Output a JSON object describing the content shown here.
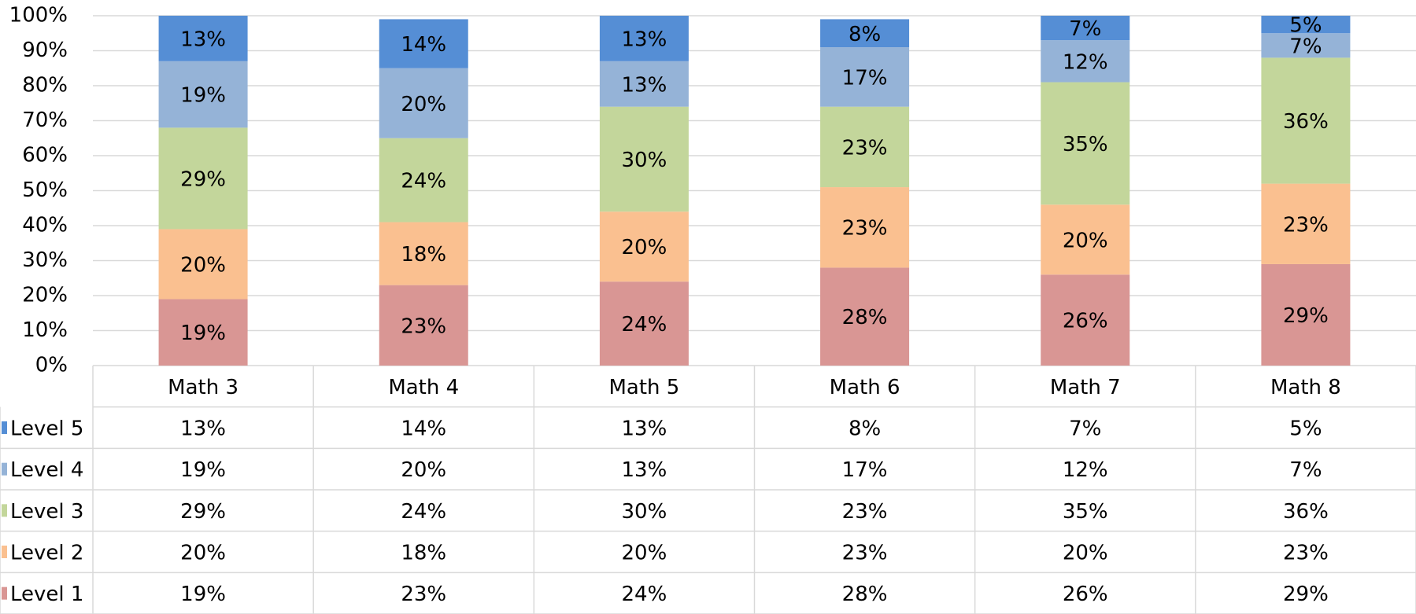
{
  "chart_data": {
    "type": "stacked_bar",
    "categories": [
      "Math 3",
      "Math 4",
      "Math 5",
      "Math 6",
      "Math 7",
      "Math 8"
    ],
    "series": [
      {
        "name": "Level 1",
        "color": "#d99694",
        "values": [
          19,
          23,
          24,
          28,
          26,
          29
        ],
        "value_labels": [
          "19%",
          "23%",
          "24%",
          "28%",
          "26%",
          "29%"
        ]
      },
      {
        "name": "Level 2",
        "color": "#fac090",
        "values": [
          20,
          18,
          20,
          23,
          20,
          23
        ],
        "value_labels": [
          "20%",
          "18%",
          "20%",
          "23%",
          "20%",
          "23%"
        ]
      },
      {
        "name": "Level 3",
        "color": "#c3d69b",
        "values": [
          29,
          24,
          30,
          23,
          35,
          36
        ],
        "value_labels": [
          "29%",
          "24%",
          "30%",
          "23%",
          "35%",
          "36%"
        ]
      },
      {
        "name": "Level 4",
        "color": "#95b3d7",
        "values": [
          19,
          20,
          13,
          17,
          12,
          7
        ],
        "value_labels": [
          "19%",
          "20%",
          "13%",
          "17%",
          "12%",
          "7%"
        ]
      },
      {
        "name": "Level 5",
        "color": "#558ed5",
        "values": [
          13,
          14,
          13,
          8,
          7,
          5
        ],
        "value_labels": [
          "13%",
          "14%",
          "13%",
          "8%",
          "7%",
          "5%"
        ]
      }
    ],
    "ylim": [
      0,
      100
    ],
    "yticks": [
      {
        "value": 0,
        "label": "0%"
      },
      {
        "value": 10,
        "label": "10%"
      },
      {
        "value": 20,
        "label": "20%"
      },
      {
        "value": 30,
        "label": "30%"
      },
      {
        "value": 40,
        "label": "40%"
      },
      {
        "value": 50,
        "label": "50%"
      },
      {
        "value": 60,
        "label": "60%"
      },
      {
        "value": 70,
        "label": "70%"
      },
      {
        "value": 80,
        "label": "80%"
      },
      {
        "value": 90,
        "label": "90%"
      },
      {
        "value": 100,
        "label": "100%"
      }
    ],
    "grid": true,
    "data_table": true
  }
}
